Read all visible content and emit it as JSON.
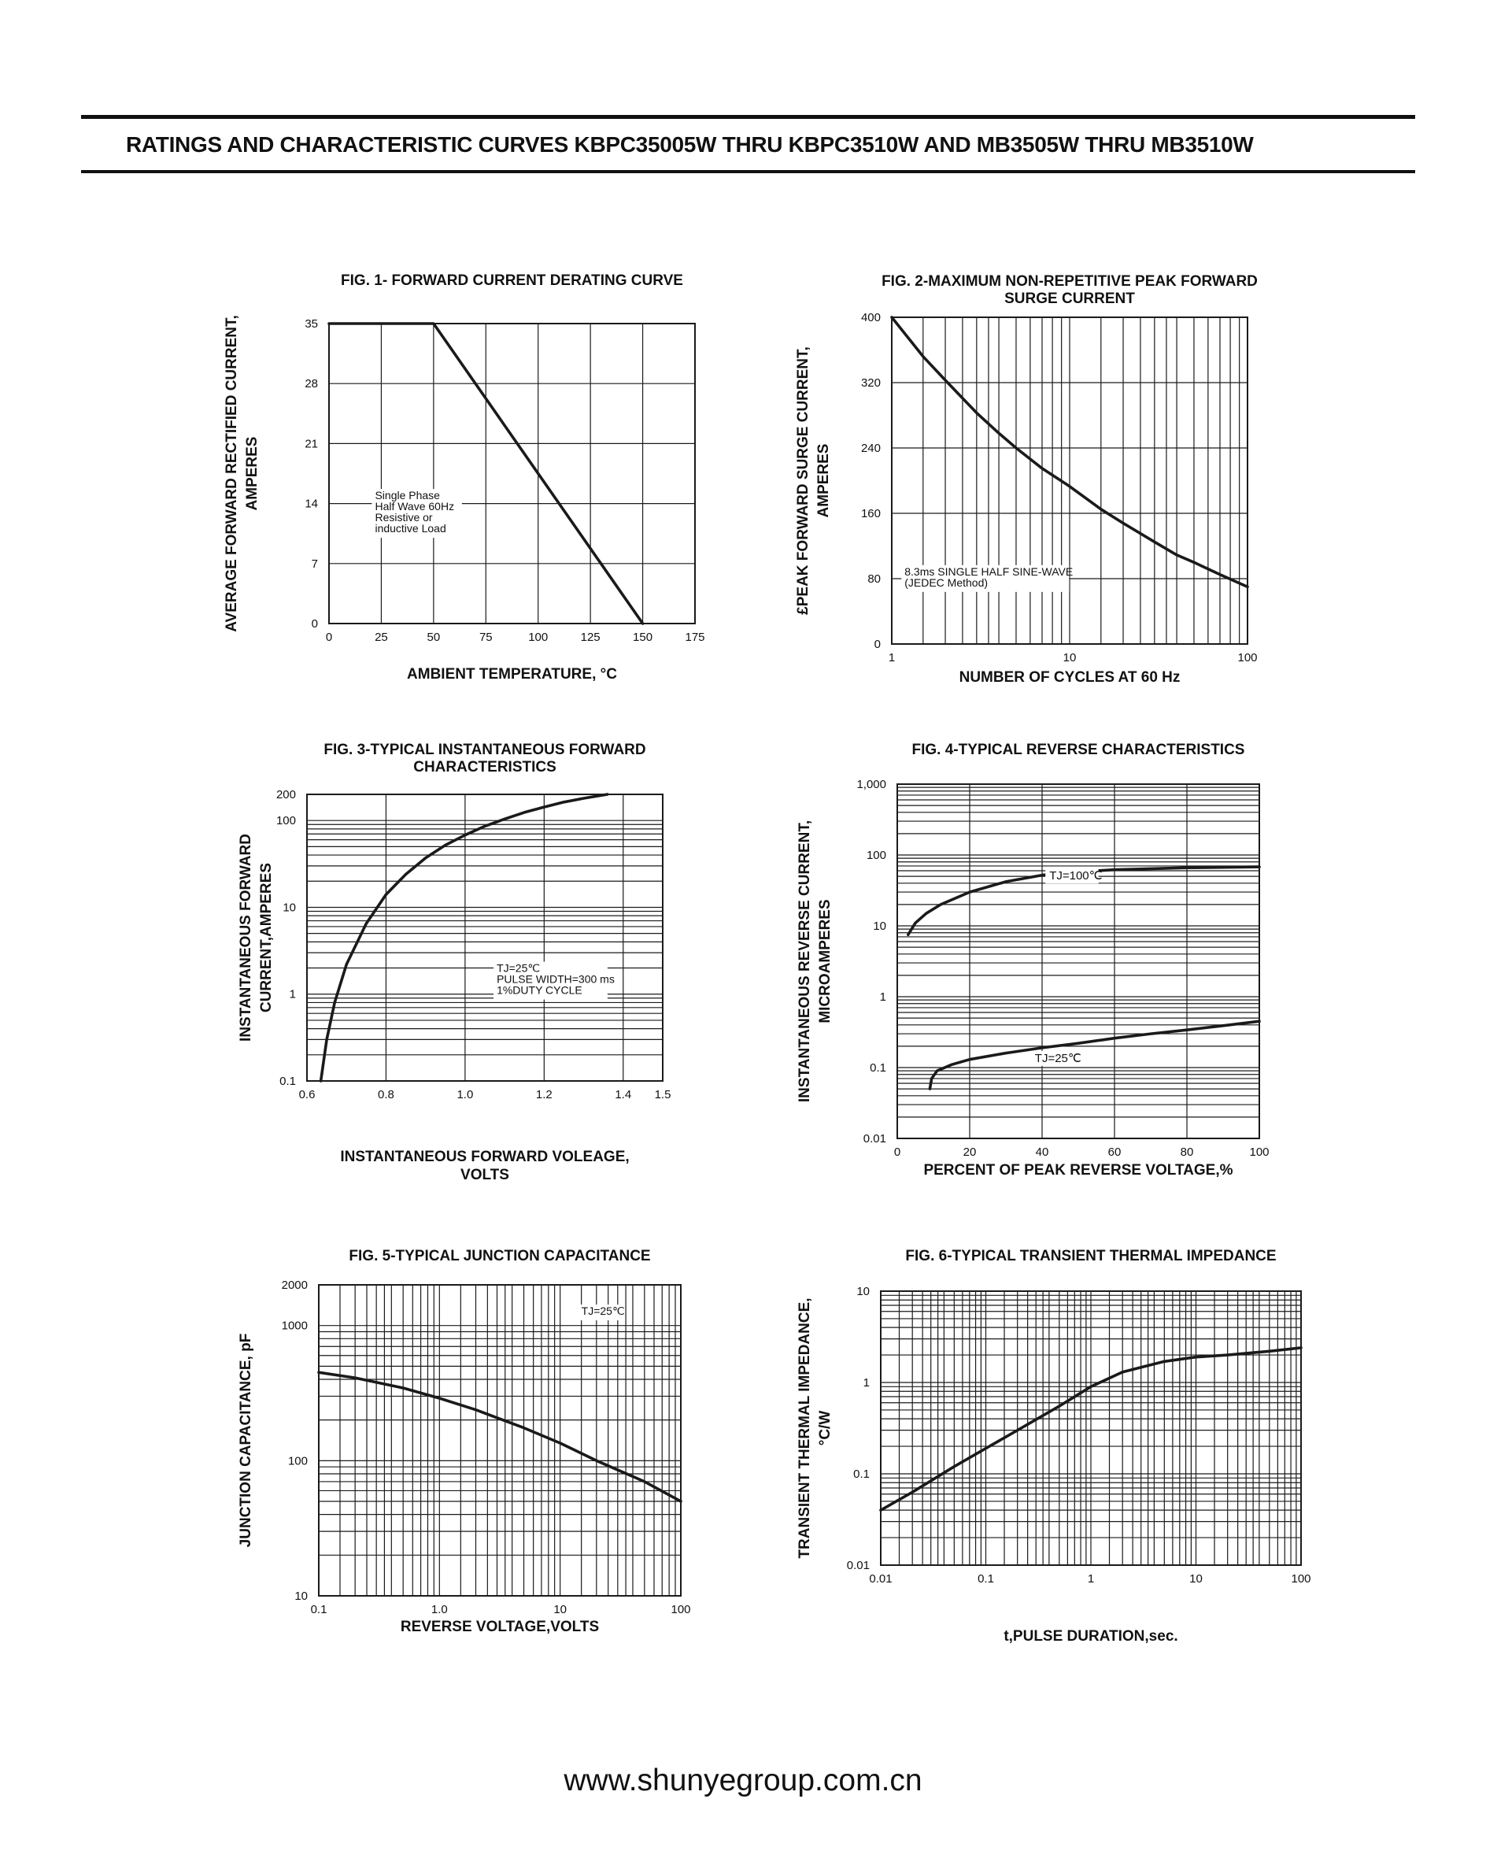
{
  "header": {
    "title": "RATINGS AND CHARACTERISTIC CURVES KBPC35005W THRU KBPC3510W AND MB3505W THRU MB3510W"
  },
  "footer": {
    "url": "www.shunyegroup.com.cn"
  },
  "colors": {
    "curve": "#1a1a1a",
    "grid": "#1a1a1a",
    "background": "#ffffff"
  },
  "chart_data": [
    {
      "id": "fig1",
      "type": "line",
      "title": [
        "FIG. 1- FORWARD CURRENT DERATING CURVE"
      ],
      "xlabel": [
        "AMBIENT TEMPERATURE, °C"
      ],
      "ylabel": [
        "AVERAGE FORWARD RECTIFIED CURRENT,",
        "AMPERES"
      ],
      "xscale": "linear",
      "yscale": "linear",
      "xlim": [
        0,
        175
      ],
      "ylim": [
        0,
        35
      ],
      "xticks": [
        0,
        25,
        50,
        75,
        100,
        125,
        150,
        175
      ],
      "xtick_labels": [
        "0",
        "25",
        "50",
        "75",
        "100",
        "125",
        "150",
        "175"
      ],
      "yticks": [
        0,
        7,
        14,
        21,
        28,
        35
      ],
      "ytick_labels": [
        "0",
        "7",
        "14",
        "21",
        "28",
        "35"
      ],
      "grid": true,
      "annotation": {
        "lines": [
          "Single Phase",
          "Half Wave 60Hz",
          "Resistive or",
          "inductive Load"
        ],
        "x": 22,
        "y": 14.5
      },
      "series": [
        {
          "x": [
            0,
            50,
            150
          ],
          "y": [
            35,
            35,
            0
          ]
        }
      ]
    },
    {
      "id": "fig2",
      "type": "line",
      "title": [
        "FIG. 2-MAXIMUM NON-REPETITIVE PEAK FORWARD",
        "SURGE CURRENT"
      ],
      "xlabel": [
        "NUMBER OF CYCLES AT 60 Hz"
      ],
      "ylabel": [
        "£PEAK  FORWARD SURGE CURRENT,",
        "AMPERES"
      ],
      "xscale": "log",
      "yscale": "linear",
      "xlim": [
        1,
        100
      ],
      "ylim": [
        0,
        400
      ],
      "xticks": [
        1,
        10,
        100
      ],
      "xtick_labels": [
        "1",
        "10",
        "100"
      ],
      "yticks": [
        0,
        80,
        160,
        240,
        320,
        400
      ],
      "ytick_labels": [
        "0",
        "80",
        "160",
        "240",
        "320",
        "400"
      ],
      "grid": true,
      "annotation": {
        "lines": [
          "8.3ms SINGLE HALF SINE-WAVE",
          "(JEDEC Method)"
        ],
        "x": 1.18,
        "y": 84
      },
      "series": [
        {
          "x": [
            1,
            1.5,
            2,
            3,
            4,
            5,
            7,
            10,
            15,
            20,
            30,
            40,
            50,
            70,
            100
          ],
          "y": [
            400,
            352,
            323,
            283,
            258,
            240,
            215,
            193,
            165,
            148,
            125,
            109,
            100,
            85,
            70
          ]
        }
      ]
    },
    {
      "id": "fig3",
      "type": "line",
      "title": [
        "FIG. 3-TYPICAL INSTANTANEOUS FORWARD",
        "CHARACTERISTICS"
      ],
      "xlabel": [
        "INSTANTANEOUS FORWARD VOLEAGE,",
        "VOLTS"
      ],
      "ylabel": [
        "INSTANTANEOUS FORWARD",
        "CURRENT,AMPERES"
      ],
      "xscale": "linear",
      "yscale": "log",
      "xlim": [
        0.6,
        1.5
      ],
      "ylim": [
        0.1,
        200
      ],
      "xticks": [
        0.6,
        0.8,
        1.0,
        1.2,
        1.4,
        1.5
      ],
      "xtick_labels": [
        "0.6",
        "0.8",
        "1.0",
        "1.2",
        "1.4",
        "1.5"
      ],
      "yticks": [
        0.1,
        1,
        10,
        100,
        200
      ],
      "ytick_labels": [
        "0.1",
        "1",
        "10",
        "100",
        "200"
      ],
      "grid": true,
      "annotation": {
        "lines": [
          "TJ=25℃",
          "PULSE WIDTH=300 ms",
          "1%DUTY CYCLE"
        ],
        "x": 1.08,
        "y": 1.8
      },
      "series": [
        {
          "x": [
            0.635,
            0.65,
            0.67,
            0.7,
            0.75,
            0.8,
            0.85,
            0.9,
            0.95,
            1.0,
            1.05,
            1.1,
            1.15,
            1.2,
            1.25,
            1.3,
            1.36
          ],
          "y": [
            0.1,
            0.3,
            0.8,
            2.2,
            6.5,
            14,
            24,
            37,
            52,
            68,
            86,
            104,
            124,
            143,
            163,
            180,
            200
          ]
        }
      ]
    },
    {
      "id": "fig4",
      "type": "line",
      "title": [
        "FIG. 4-TYPICAL REVERSE CHARACTERISTICS"
      ],
      "xlabel": [
        "PERCENT OF PEAK REVERSE VOLTAGE,%"
      ],
      "ylabel": [
        "INSTANTANEOUS REVERSE CURRENT,",
        "MICROAMPERES"
      ],
      "xscale": "linear",
      "yscale": "log",
      "xlim": [
        0,
        100
      ],
      "ylim": [
        0.01,
        1000
      ],
      "xticks": [
        0,
        20,
        40,
        60,
        80,
        100
      ],
      "xtick_labels": [
        "0",
        "20",
        "40",
        "60",
        "80",
        "100"
      ],
      "yticks": [
        0.01,
        0.1,
        1,
        10,
        100,
        1000
      ],
      "ytick_labels": [
        "0.01",
        "0.1",
        "1",
        "10",
        "100",
        "1,000"
      ],
      "grid": true,
      "series": [
        {
          "name": "TJ=100℃",
          "label_at": [
            42,
            45
          ],
          "x": [
            3,
            5,
            8,
            12,
            20,
            30,
            40,
            50,
            60,
            70,
            80,
            90,
            100
          ],
          "y": [
            7.5,
            11,
            15,
            20,
            30,
            42,
            52,
            58,
            62,
            64,
            66,
            67,
            68
          ]
        },
        {
          "name": "TJ=25℃",
          "label_at": [
            38,
            0.12
          ],
          "x": [
            9,
            9.5,
            11,
            15,
            20,
            30,
            40,
            50,
            60,
            70,
            80,
            90,
            100
          ],
          "y": [
            0.05,
            0.07,
            0.09,
            0.11,
            0.13,
            0.16,
            0.19,
            0.22,
            0.26,
            0.3,
            0.34,
            0.39,
            0.45
          ]
        }
      ]
    },
    {
      "id": "fig5",
      "type": "line",
      "title": [
        "FIG. 5-TYPICAL JUNCTION CAPACITANCE"
      ],
      "xlabel": [
        "REVERSE VOLTAGE,VOLTS"
      ],
      "ylabel": [
        "JUNCTION CAPACITANCE, pF"
      ],
      "xscale": "log",
      "yscale": "log",
      "xlim": [
        0.1,
        100
      ],
      "ylim": [
        10,
        2000
      ],
      "xticks": [
        0.1,
        1,
        10,
        100
      ],
      "xtick_labels": [
        "0.1",
        "1.0",
        "10",
        "100"
      ],
      "yticks": [
        10,
        100,
        1000,
        2000
      ],
      "ytick_labels": [
        "10",
        "100",
        "1000",
        "2000"
      ],
      "grid": true,
      "annotation": {
        "lines": [
          "TJ=25℃"
        ],
        "x": 15,
        "y": 1200
      },
      "series": [
        {
          "x": [
            0.1,
            0.2,
            0.5,
            1,
            2,
            5,
            10,
            20,
            50,
            100
          ],
          "y": [
            450,
            410,
            345,
            290,
            238,
            175,
            135,
            100,
            70,
            50
          ]
        }
      ]
    },
    {
      "id": "fig6",
      "type": "line",
      "title": [
        "FIG. 6-TYPICAL TRANSIENT THERMAL IMPEDANCE"
      ],
      "xlabel": [
        "t,PULSE DURATION,sec."
      ],
      "ylabel": [
        "TRANSIENT THERMAL IMPEDANCE,",
        "°C/W"
      ],
      "xscale": "log",
      "yscale": "log",
      "xlim": [
        0.01,
        100
      ],
      "ylim": [
        0.01,
        10
      ],
      "xticks": [
        0.01,
        0.1,
        1,
        10,
        100
      ],
      "xtick_labels": [
        "0.01",
        "0.1",
        "1",
        "10",
        "100"
      ],
      "yticks": [
        0.01,
        0.1,
        1,
        10
      ],
      "ytick_labels": [
        "0.01",
        "0.1",
        "1",
        "10"
      ],
      "grid": true,
      "series": [
        {
          "x": [
            0.01,
            0.02,
            0.05,
            0.1,
            0.2,
            0.5,
            1,
            2,
            5,
            10,
            20,
            50,
            100
          ],
          "y": [
            0.04,
            0.063,
            0.12,
            0.19,
            0.3,
            0.55,
            0.9,
            1.3,
            1.7,
            1.9,
            2.0,
            2.2,
            2.4
          ]
        }
      ]
    }
  ]
}
